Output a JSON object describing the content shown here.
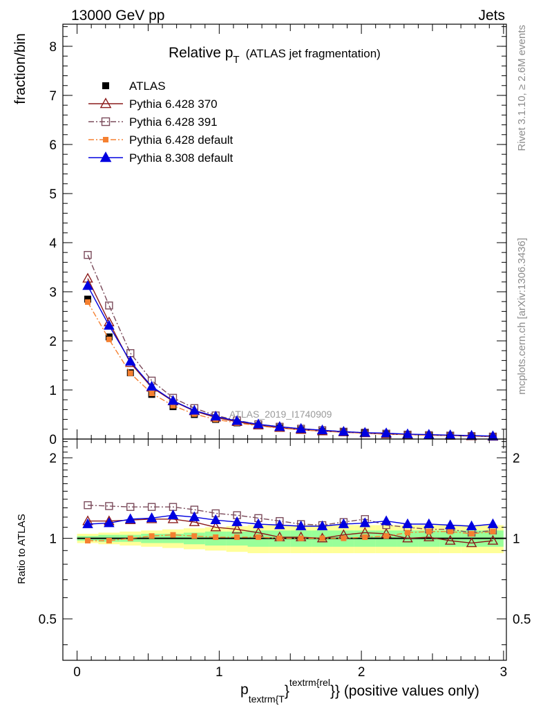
{
  "header": {
    "left": "13000 GeV pp",
    "right": "Jets"
  },
  "title": {
    "main": "Relative p",
    "sub": "T",
    "rest": "(ATLAS jet fragmentation)"
  },
  "side_labels": {
    "top": "Rivet 3.1.10, ≥ 2.6M events",
    "bottom": "mcplots.cern.ch [arXiv:1306.3436]"
  },
  "watermark": "ATLAS_2019_I1740909",
  "y_label_main": "fraction/bin",
  "y_label_ratio": "Ratio to ATLAS",
  "x_label": {
    "p": "p",
    "sub": "textrm{T",
    "sup": "textrm{rel",
    "brace_sub": "}",
    "brace_sup": "}",
    "rest": "} (positive values only)"
  },
  "colors": {
    "data": "#000000",
    "py6_370": "#8b1a1a",
    "py6_391": "#7a4a5a",
    "py6_default": "#f58030",
    "py8_default": "#0000e0",
    "band_inner": "#99ff99",
    "band_outer": "#ffff99"
  },
  "chart_data": [
    {
      "type": "scatter",
      "panel": "main",
      "x": [
        0.075,
        0.225,
        0.375,
        0.525,
        0.675,
        0.825,
        0.975,
        1.125,
        1.275,
        1.425,
        1.575,
        1.725,
        1.875,
        2.025,
        2.175,
        2.325,
        2.475,
        2.625,
        2.775,
        2.925
      ],
      "xlim": [
        -0.1,
        3.02
      ],
      "ylim": [
        0,
        8.45
      ],
      "y_ticks": [
        0,
        1,
        2,
        3,
        4,
        5,
        6,
        7,
        8
      ],
      "x_ticks": [
        0,
        1,
        2,
        3
      ],
      "ylabel": "fraction/bin",
      "legend_position": "top-left",
      "series": [
        {
          "name": "ATLAS",
          "key": "data",
          "marker": "square-filled",
          "line": "none",
          "values": [
            2.85,
            2.08,
            1.35,
            0.91,
            0.66,
            0.5,
            0.4,
            0.33,
            0.27,
            0.23,
            0.19,
            0.16,
            0.14,
            0.12,
            0.1,
            0.09,
            0.08,
            0.07,
            0.06,
            0.05
          ]
        },
        {
          "name": "Pythia 6.428 370",
          "key": "py6_370",
          "marker": "triangle-open",
          "line": "solid",
          "values": [
            3.27,
            2.38,
            1.55,
            1.05,
            0.77,
            0.57,
            0.44,
            0.35,
            0.28,
            0.23,
            0.19,
            0.16,
            0.14,
            0.12,
            0.1,
            0.09,
            0.08,
            0.07,
            0.06,
            0.05
          ]
        },
        {
          "name": "Pythia 6.428 391",
          "key": "py6_391",
          "marker": "square-open",
          "line": "dashdot",
          "values": [
            3.75,
            2.72,
            1.75,
            1.19,
            0.84,
            0.63,
            0.48,
            0.38,
            0.3,
            0.25,
            0.21,
            0.18,
            0.15,
            0.13,
            0.11,
            0.09,
            0.08,
            0.07,
            0.06,
            0.05
          ]
        },
        {
          "name": "Pythia 6.428 default",
          "key": "py6_default",
          "marker": "square-filled",
          "line": "dashdot",
          "values": [
            2.79,
            2.03,
            1.34,
            0.93,
            0.68,
            0.51,
            0.4,
            0.33,
            0.27,
            0.22,
            0.19,
            0.16,
            0.14,
            0.12,
            0.1,
            0.09,
            0.08,
            0.07,
            0.06,
            0.05
          ]
        },
        {
          "name": "Pythia 8.308 default",
          "key": "py8_default",
          "marker": "triangle-filled",
          "line": "solid",
          "values": [
            3.12,
            2.31,
            1.58,
            1.07,
            0.78,
            0.58,
            0.46,
            0.37,
            0.3,
            0.25,
            0.21,
            0.18,
            0.15,
            0.13,
            0.12,
            0.1,
            0.09,
            0.08,
            0.07,
            0.06
          ]
        }
      ]
    },
    {
      "type": "scatter",
      "panel": "ratio",
      "x": [
        0.075,
        0.225,
        0.375,
        0.525,
        0.675,
        0.825,
        0.975,
        1.125,
        1.275,
        1.425,
        1.575,
        1.725,
        1.875,
        2.025,
        2.175,
        2.325,
        2.475,
        2.625,
        2.775,
        2.925
      ],
      "xlim": [
        -0.1,
        3.02
      ],
      "ylim": [
        0.35,
        2.35
      ],
      "y_ticks": [
        0.5,
        1,
        2
      ],
      "x_ticks": [
        0,
        1,
        2,
        3
      ],
      "ylabel": "Ratio to ATLAS",
      "reference": 1,
      "band_inner": {
        "lo": [
          0.98,
          0.97,
          0.97,
          0.96,
          0.96,
          0.95,
          0.94,
          0.94,
          0.93,
          0.93,
          0.93,
          0.93,
          0.93,
          0.93,
          0.93,
          0.93,
          0.93,
          0.93,
          0.93,
          0.93
        ],
        "hi": [
          1.02,
          1.03,
          1.03,
          1.04,
          1.04,
          1.05,
          1.06,
          1.06,
          1.07,
          1.07,
          1.07,
          1.07,
          1.07,
          1.07,
          1.07,
          1.07,
          1.07,
          1.07,
          1.07,
          1.07
        ]
      },
      "band_outer": {
        "lo": [
          0.96,
          0.95,
          0.94,
          0.93,
          0.92,
          0.91,
          0.9,
          0.89,
          0.88,
          0.88,
          0.88,
          0.88,
          0.88,
          0.88,
          0.88,
          0.88,
          0.88,
          0.88,
          0.88,
          0.88
        ],
        "hi": [
          1.04,
          1.05,
          1.06,
          1.07,
          1.08,
          1.09,
          1.1,
          1.11,
          1.12,
          1.12,
          1.12,
          1.12,
          1.12,
          1.12,
          1.12,
          1.12,
          1.12,
          1.12,
          1.12,
          1.12
        ]
      },
      "series": [
        {
          "name": "Pythia 6.428 370",
          "key": "py6_370",
          "marker": "triangle-open",
          "line": "solid",
          "values": [
            1.16,
            1.16,
            1.17,
            1.18,
            1.18,
            1.15,
            1.1,
            1.08,
            1.05,
            1.01,
            1.01,
            1.0,
            1.03,
            1.05,
            1.04,
            1.0,
            1.01,
            0.98,
            0.96,
            0.98
          ]
        },
        {
          "name": "Pythia 6.428 391",
          "key": "py6_391",
          "marker": "square-open",
          "line": "dashdot",
          "values": [
            1.33,
            1.32,
            1.31,
            1.31,
            1.31,
            1.28,
            1.24,
            1.22,
            1.19,
            1.16,
            1.13,
            1.12,
            1.15,
            1.18,
            1.12,
            1.1,
            1.08,
            1.08,
            1.05,
            1.07
          ]
        },
        {
          "name": "Pythia 6.428 default",
          "key": "py6_default",
          "marker": "square-filled",
          "line": "dashdot",
          "values": [
            0.98,
            0.98,
            1.0,
            1.02,
            1.03,
            1.02,
            1.01,
            1.01,
            1.01,
            1.0,
            1.0,
            1.0,
            1.0,
            1.01,
            1.02,
            1.05,
            1.06,
            1.06,
            1.04,
            1.06
          ]
        },
        {
          "name": "Pythia 8.308 default",
          "key": "py8_default",
          "marker": "triangle-filled",
          "line": "solid",
          "values": [
            1.13,
            1.14,
            1.18,
            1.19,
            1.22,
            1.2,
            1.17,
            1.15,
            1.13,
            1.12,
            1.11,
            1.11,
            1.13,
            1.14,
            1.16,
            1.13,
            1.13,
            1.12,
            1.11,
            1.13
          ]
        }
      ]
    }
  ]
}
